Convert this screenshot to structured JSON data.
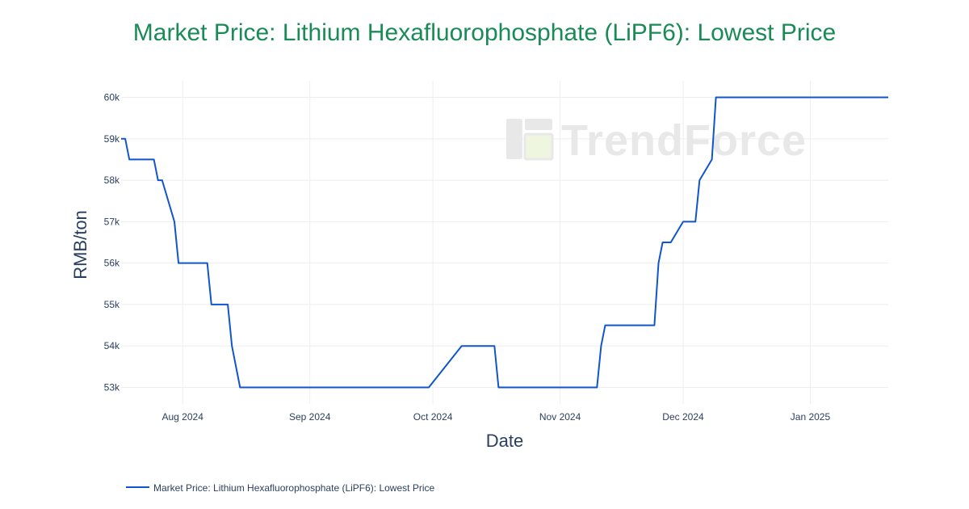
{
  "colors": {
    "title": "#1a8a57",
    "line": "#1155cc",
    "grid": "#eeeeee",
    "text": "#2a3f5f",
    "watermark": "#e8e8e8",
    "watermark_accent": "#eef6df"
  },
  "watermark": {
    "text": "TrendForce",
    "icon": "trendforce-logo-icon"
  },
  "chart_data": {
    "type": "line",
    "title": "Market Price: Lithium Hexafluorophosphate (LiPF6): Lowest Price",
    "xlabel": "Date",
    "ylabel": "RMB/ton",
    "xlim": [
      "2024-07-17",
      "2025-01-20"
    ],
    "ylim": [
      52600,
      60400
    ],
    "grid": true,
    "legend_position": "bottom-left",
    "x_ticks": [
      {
        "date": "2024-08-01",
        "label": "Aug 2024"
      },
      {
        "date": "2024-09-01",
        "label": "Sep 2024"
      },
      {
        "date": "2024-10-01",
        "label": "Oct 2024"
      },
      {
        "date": "2024-11-01",
        "label": "Nov 2024"
      },
      {
        "date": "2024-12-01",
        "label": "Dec 2024"
      },
      {
        "date": "2025-01-01",
        "label": "Jan 2025"
      }
    ],
    "y_ticks": [
      {
        "value": 53000,
        "label": "53k"
      },
      {
        "value": 54000,
        "label": "54k"
      },
      {
        "value": 55000,
        "label": "55k"
      },
      {
        "value": 56000,
        "label": "56k"
      },
      {
        "value": 57000,
        "label": "57k"
      },
      {
        "value": 58000,
        "label": "58k"
      },
      {
        "value": 59000,
        "label": "59k"
      },
      {
        "value": 60000,
        "label": "60k"
      }
    ],
    "series": [
      {
        "name": "Market Price: Lithium Hexafluorophosphate (LiPF6): Lowest Price",
        "x": [
          "2024-07-17",
          "2024-07-18",
          "2024-07-19",
          "2024-07-25",
          "2024-07-26",
          "2024-07-27",
          "2024-07-30",
          "2024-07-31",
          "2024-08-07",
          "2024-08-08",
          "2024-08-12",
          "2024-08-13",
          "2024-08-15",
          "2024-09-30",
          "2024-10-08",
          "2024-10-16",
          "2024-10-17",
          "2024-11-10",
          "2024-11-11",
          "2024-11-12",
          "2024-11-24",
          "2024-11-25",
          "2024-11-26",
          "2024-11-28",
          "2024-12-01",
          "2024-12-04",
          "2024-12-05",
          "2024-12-08",
          "2024-12-09",
          "2025-01-20"
        ],
        "values": [
          59000,
          59000,
          58500,
          58500,
          58000,
          58000,
          57000,
          56000,
          56000,
          55000,
          55000,
          54000,
          53000,
          53000,
          54000,
          54000,
          53000,
          53000,
          54000,
          54500,
          54500,
          56000,
          56500,
          56500,
          57000,
          57000,
          58000,
          58500,
          60000,
          60000
        ]
      }
    ]
  }
}
